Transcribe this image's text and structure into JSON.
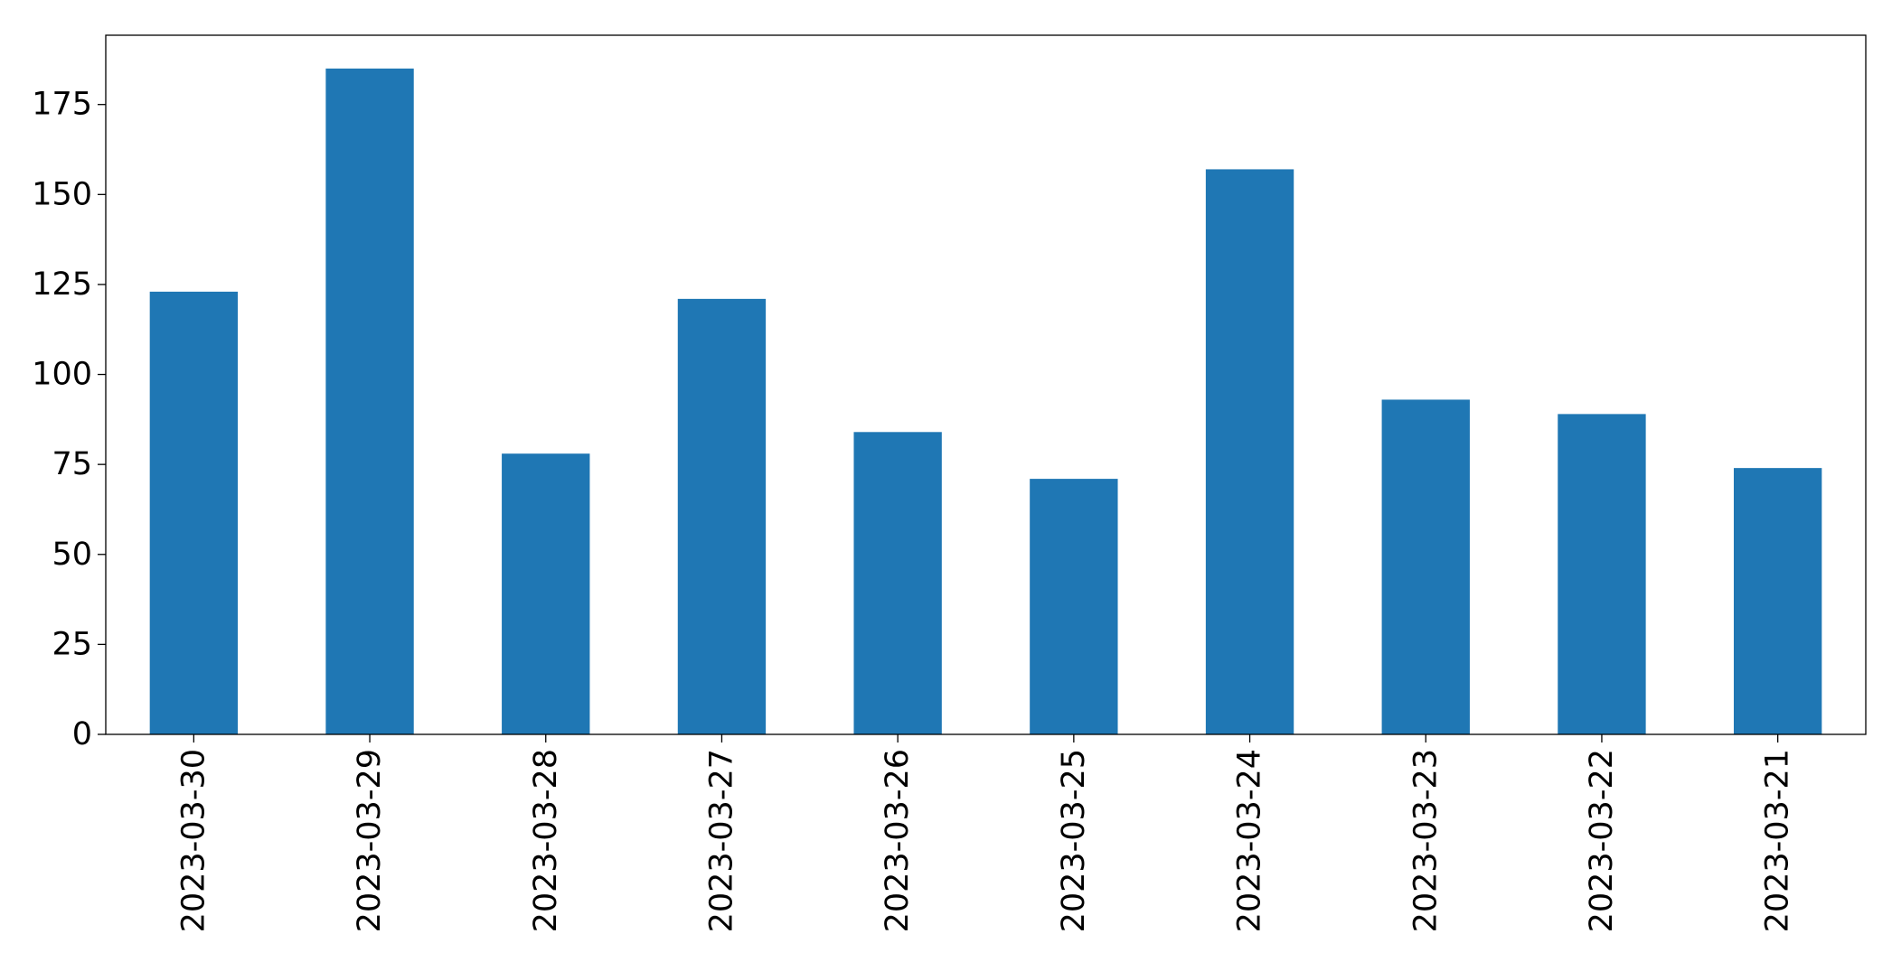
{
  "chart_data": {
    "type": "bar",
    "categories": [
      "2023-03-30",
      "2023-03-29",
      "2023-03-28",
      "2023-03-27",
      "2023-03-26",
      "2023-03-25",
      "2023-03-24",
      "2023-03-23",
      "2023-03-22",
      "2023-03-21"
    ],
    "values": [
      123,
      185,
      78,
      121,
      84,
      71,
      157,
      93,
      89,
      74
    ],
    "color": "#1f77b4",
    "ylim": [
      0,
      194.25
    ],
    "yticks": [
      0,
      25,
      50,
      75,
      100,
      125,
      150,
      175
    ],
    "grid": false
  }
}
